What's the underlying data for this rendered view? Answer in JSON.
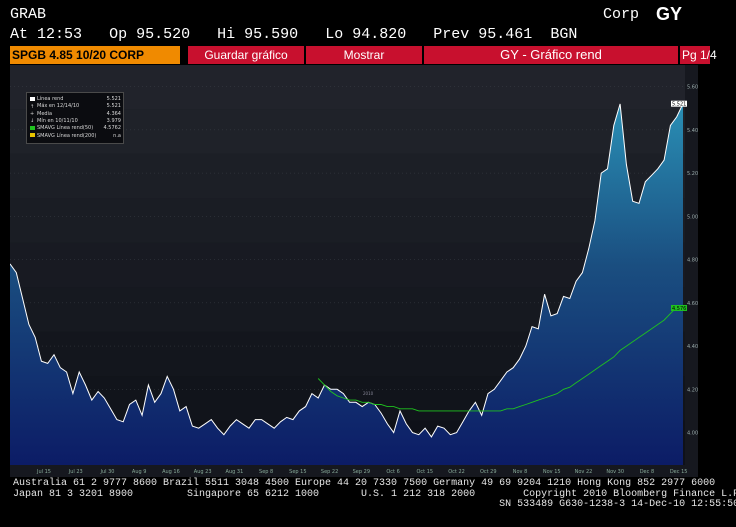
{
  "header": {
    "ticker": "GRAB",
    "at_label": "At",
    "time": "12:53",
    "op_label": "Op",
    "op": "95.520",
    "hi_label": "Hi",
    "hi": "95.590",
    "lo_label": "Lo",
    "lo": "94.820",
    "prev_label": "Prev",
    "prev": "95.461",
    "source": "BGN",
    "sector": "Corp",
    "function": "GY"
  },
  "toolbar": {
    "security": "SPGB 4.85 10/20 CORP",
    "save_label": "Guardar gráfico",
    "show_label": "Mostrar",
    "title": "GY - Gráfico rend",
    "page": "Pg 1/4"
  },
  "legend": {
    "items": [
      {
        "label": "Línea rend",
        "value": "5.521",
        "color": "#ffffff",
        "icon": "square"
      },
      {
        "label": "Máx en 12/14/10",
        "value": "5.521",
        "color": "#cccccc",
        "icon": "up-arrow"
      },
      {
        "label": "Media",
        "value": "4.364",
        "color": "#cccccc",
        "icon": "plus"
      },
      {
        "label": "Mín en 10/11/10",
        "value": "3.979",
        "color": "#cccccc",
        "icon": "down-arrow"
      },
      {
        "label": "SMAVG Línea rend(50)",
        "value": "4.5762",
        "color": "#1fc21f",
        "icon": "square"
      },
      {
        "label": "SMAVG Línea rend(200)",
        "value": "n.a",
        "color": "#e8c400",
        "icon": "square"
      }
    ]
  },
  "chart_data": {
    "type": "area",
    "title": "GY - Gráfico rend",
    "xlabel": "",
    "ylabel": "",
    "ylim": [
      3.85,
      5.7
    ],
    "y_ticks": [
      "5.600",
      "5.400",
      "5.200",
      "5.000",
      "4.800",
      "4.600",
      "4.400",
      "4.200",
      "4.000"
    ],
    "x_ticks": [
      "Jul 15",
      "Jul 23",
      "Jul 30",
      "Aug 9",
      "Aug 16",
      "Aug 23",
      "Aug 31",
      "Sep 8",
      "Sep 15",
      "Sep 22",
      "Sep 29",
      "Oct 6",
      "Oct 15",
      "Oct 22",
      "Oct 29",
      "Nov 8",
      "Nov 15",
      "Nov 22",
      "Nov 30",
      "Dec 8",
      "Dec 15"
    ],
    "year_label": "2010",
    "last_value_label": "5.521",
    "sma50_value_label": "4.576",
    "series": [
      {
        "name": "Línea rend",
        "color": "#ffffff",
        "values": [
          4.78,
          4.74,
          4.62,
          4.5,
          4.44,
          4.33,
          4.32,
          4.36,
          4.3,
          4.28,
          4.18,
          4.28,
          4.22,
          4.15,
          4.19,
          4.16,
          4.11,
          4.06,
          4.05,
          4.13,
          4.15,
          4.08,
          4.22,
          4.14,
          4.18,
          4.26,
          4.2,
          4.1,
          4.12,
          4.03,
          4.02,
          4.04,
          4.06,
          4.02,
          3.99,
          4.03,
          4.06,
          4.04,
          4.02,
          4.06,
          4.06,
          4.04,
          4.02,
          4.05,
          4.07,
          4.06,
          4.1,
          4.12,
          4.18,
          4.16,
          4.22,
          4.2,
          4.2,
          4.18,
          4.14,
          4.14,
          4.12,
          4.14,
          4.13,
          4.09,
          4.04,
          4.0,
          4.1,
          4.04,
          4.0,
          3.99,
          4.02,
          3.98,
          4.03,
          4.02,
          3.99,
          4.0,
          4.05,
          4.1,
          4.14,
          4.08,
          4.18,
          4.2,
          4.24,
          4.28,
          4.3,
          4.34,
          4.4,
          4.49,
          4.48,
          4.64,
          4.54,
          4.55,
          4.63,
          4.62,
          4.7,
          4.74,
          4.85,
          4.98,
          5.2,
          5.22,
          5.42,
          5.52,
          5.24,
          5.07,
          5.06,
          5.16,
          5.19,
          5.22,
          5.26,
          5.42,
          5.46,
          5.521
        ]
      },
      {
        "name": "SMAVG Línea rend(50)",
        "color": "#1fc21f",
        "values": [
          null,
          null,
          null,
          null,
          null,
          null,
          null,
          null,
          null,
          null,
          null,
          null,
          null,
          null,
          null,
          null,
          null,
          null,
          null,
          null,
          null,
          null,
          null,
          null,
          null,
          null,
          null,
          null,
          null,
          null,
          null,
          null,
          null,
          null,
          null,
          null,
          null,
          null,
          null,
          null,
          null,
          null,
          null,
          null,
          null,
          null,
          null,
          null,
          null,
          4.25,
          4.22,
          4.19,
          4.17,
          4.16,
          4.15,
          4.15,
          4.14,
          4.14,
          4.13,
          4.13,
          4.12,
          4.12,
          4.11,
          4.11,
          4.11,
          4.1,
          4.1,
          4.1,
          4.1,
          4.1,
          4.1,
          4.1,
          4.1,
          4.1,
          4.1,
          4.1,
          4.1,
          4.1,
          4.1,
          4.11,
          4.11,
          4.12,
          4.13,
          4.14,
          4.15,
          4.16,
          4.17,
          4.18,
          4.2,
          4.21,
          4.23,
          4.25,
          4.27,
          4.29,
          4.31,
          4.33,
          4.35,
          4.38,
          4.4,
          4.42,
          4.44,
          4.46,
          4.48,
          4.5,
          4.52,
          4.55,
          4.58,
          4.5762
        ]
      }
    ]
  },
  "footer": {
    "line1": "Australia 61 2 9777 8600 Brazil 5511 3048 4500 Europe 44 20 7330 7500 Germany 49 69 9204 1210 Hong Kong 852 2977 6000",
    "line2": "Japan 81 3 3201 8900         Singapore 65 6212 1000       U.S. 1 212 318 2000        Copyright 2010 Bloomberg Finance L.P.",
    "line3": "                                                                                 SN 533489 G630-1238-3 14-Dec-10 12:55:50"
  }
}
